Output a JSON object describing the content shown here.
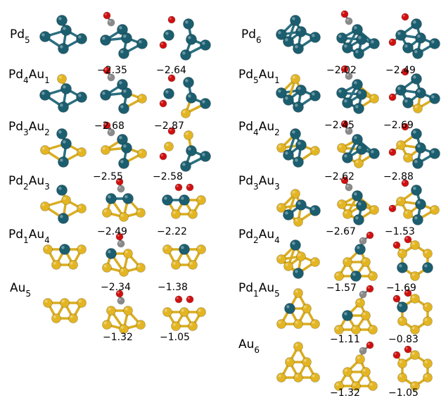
{
  "colors": {
    "Pd": "#1b5e6f",
    "Au": "#e3b522",
    "C": "#8a8a8a",
    "O": "#d10f0f",
    "bond_pd": "#2a6f80",
    "bond_au": "#d9ad22"
  },
  "left": {
    "rows": [
      {
        "label": [
          [
            "Pd",
            "5"
          ]
        ],
        "energies": []
      },
      {
        "label": [
          [
            "Pd",
            "4"
          ],
          [
            "Au",
            "1"
          ]
        ],
        "energies": [
          "−2.35",
          "−2.64"
        ]
      },
      {
        "label": [
          [
            "Pd",
            "3"
          ],
          [
            "Au",
            "2"
          ]
        ],
        "energies": [
          "−2.68",
          "−2.87"
        ]
      },
      {
        "label": [
          [
            "Pd",
            "2"
          ],
          [
            "Au",
            "3"
          ]
        ],
        "energies": [
          "−2.55",
          "−2.58"
        ]
      },
      {
        "label": [
          [
            "Pd",
            "1"
          ],
          [
            "Au",
            "4"
          ]
        ],
        "energies": [
          "−2.49",
          "−2.22"
        ]
      },
      {
        "label": [
          [
            "Au",
            "5"
          ]
        ],
        "energies": [
          "−2.34",
          "−1.38"
        ]
      },
      {
        "label": [],
        "energies": [
          "−1.32",
          "−1.05"
        ]
      }
    ]
  },
  "right": {
    "rows": [
      {
        "label": [
          [
            "Pd",
            "6"
          ]
        ],
        "energies": []
      },
      {
        "label": [
          [
            "Pd",
            "5"
          ],
          [
            "Au",
            "1"
          ]
        ],
        "energies": [
          "−2.02",
          "−2.49"
        ]
      },
      {
        "label": [
          [
            "Pd",
            "4"
          ],
          [
            "Au",
            "2"
          ]
        ],
        "energies": [
          "−2.45",
          "−2.69"
        ]
      },
      {
        "label": [
          [
            "Pd",
            "3"
          ],
          [
            "Au",
            "3"
          ]
        ],
        "energies": [
          "−2.62",
          "−2.88"
        ]
      },
      {
        "label": [
          [
            "Pd",
            "2"
          ],
          [
            "Au",
            "4"
          ]
        ],
        "energies": [
          "−2.67",
          "−1.53"
        ]
      },
      {
        "label": [
          [
            "Pd",
            "1"
          ],
          [
            "Au",
            "5"
          ]
        ],
        "energies": [
          "−1.57",
          "−1.69"
        ]
      },
      {
        "label": [
          [
            "Au",
            "6"
          ]
        ],
        "energies": [
          "−1.11",
          "−0.83"
        ]
      },
      {
        "label": [],
        "energies": [
          "−1.32",
          "−1.05"
        ]
      }
    ]
  }
}
